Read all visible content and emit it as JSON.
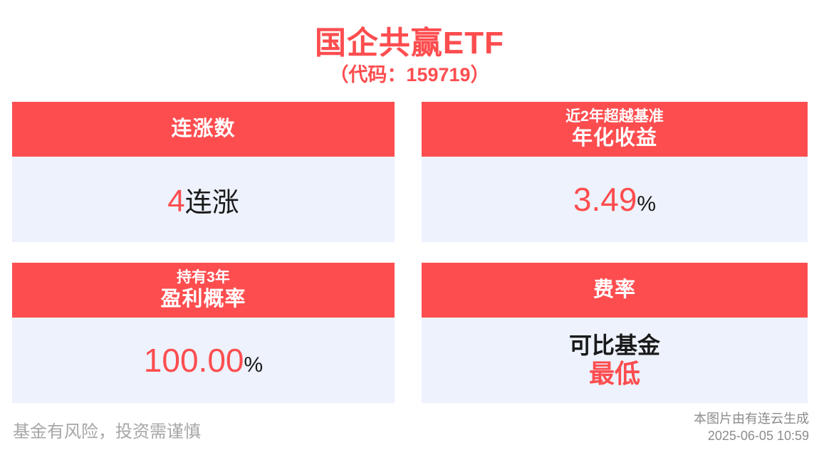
{
  "page": {
    "title": "国企共赢ETF",
    "subtitle": "（代码：159719）"
  },
  "colors": {
    "accent_red": "#fd4d4f",
    "card_body_bg": "#edf2fc",
    "header_text": "#ffffff",
    "value_black": "#1a1a1a",
    "footer_gray": "#a6a6a6"
  },
  "cards": [
    {
      "header_small": "",
      "header_main": "连涨数",
      "value_accent": "4",
      "value_plain": "连涨"
    },
    {
      "header_small": "近2年超越基准",
      "header_main": "年化收益",
      "value_accent": "3.49",
      "value_plain": "%"
    },
    {
      "header_small": "持有3年",
      "header_main": "盈利概率",
      "value_accent": "100.00",
      "value_plain": "%"
    },
    {
      "header_small": "",
      "header_main": "费率",
      "value_line1": "可比基金",
      "value_line2": "最低"
    }
  ],
  "footer": {
    "disclaimer": "基金有风险，投资需谨慎",
    "credit": "本图片由有连云生成",
    "timestamp": "2025-06-05 10:59"
  }
}
